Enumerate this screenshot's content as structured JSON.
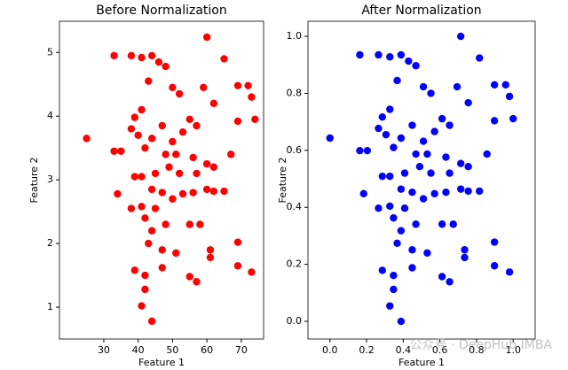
{
  "chart_data": [
    {
      "type": "scatter",
      "title": "Before Normalization",
      "x_label": "Feature 1",
      "y_label": "Feature 2",
      "color": "#ff0000",
      "tick_color": "#000000",
      "xlim": [
        17.1,
        76.5
      ],
      "ylim": [
        0.5,
        5.49
      ],
      "xticks": [
        30,
        40,
        50,
        60,
        70
      ],
      "yticks": [
        1,
        2,
        3,
        4,
        5
      ],
      "x": [
        25,
        33,
        38,
        41,
        44,
        46,
        48,
        60,
        65,
        69,
        72,
        73,
        74,
        43,
        50,
        52,
        59,
        62,
        69,
        39,
        41,
        38,
        40,
        44,
        47,
        50,
        53,
        55,
        57,
        33,
        35,
        42,
        48,
        51,
        56,
        60,
        62,
        67,
        39,
        41,
        45,
        49,
        52,
        57,
        34,
        44,
        47,
        53,
        56,
        60,
        62,
        65,
        38,
        41,
        45,
        50,
        42,
        44,
        48,
        55,
        58,
        43,
        47,
        51,
        61,
        69,
        39,
        42,
        47,
        55,
        57,
        69,
        73,
        42,
        41,
        44,
        61
      ],
      "values": [
        3.65,
        4.95,
        4.95,
        4.92,
        4.95,
        4.85,
        4.78,
        5.24,
        4.9,
        4.48,
        4.48,
        4.3,
        3.95,
        4.55,
        4.45,
        4.35,
        4.45,
        4.2,
        3.92,
        3.98,
        4.1,
        3.8,
        3.7,
        3.65,
        3.85,
        3.6,
        3.75,
        3.95,
        3.85,
        3.45,
        3.45,
        3.5,
        3.4,
        3.4,
        3.35,
        3.25,
        3.2,
        3.4,
        3.05,
        3.05,
        3.1,
        3.2,
        3.1,
        3.1,
        2.78,
        2.85,
        2.8,
        2.78,
        2.8,
        2.85,
        2.82,
        2.82,
        2.55,
        2.58,
        2.55,
        2.7,
        2.4,
        2.2,
        2.3,
        2.3,
        2.3,
        2.0,
        1.9,
        1.85,
        1.9,
        2.02,
        1.58,
        1.5,
        1.62,
        1.48,
        1.4,
        1.65,
        1.55,
        1.28,
        1.02,
        0.78,
        1.78
      ]
    },
    {
      "type": "scatter",
      "title": "After Normalization",
      "x_label": "Feature 1",
      "y_label": "Feature 2",
      "color": "#0000ff",
      "tick_color": "#d62728",
      "xlim": [
        -0.12,
        1.12
      ],
      "ylim": [
        -0.062,
        1.053
      ],
      "xticks": [
        {
          "value": 0,
          "label": "0.0"
        },
        0.2,
        0.4,
        0.6,
        0.8,
        {
          "value": 1,
          "label": "1.0"
        }
      ],
      "yticks": [
        {
          "value": 0,
          "label": "0.0"
        },
        0.2,
        0.4,
        0.6,
        0.8,
        {
          "value": 1,
          "label": "1.0"
        }
      ],
      "x": [
        0,
        0.163,
        0.265,
        0.327,
        0.388,
        0.429,
        0.469,
        0.714,
        0.816,
        0.898,
        0.959,
        0.98,
        1,
        0.367,
        0.51,
        0.551,
        0.694,
        0.755,
        0.898,
        0.286,
        0.327,
        0.265,
        0.306,
        0.388,
        0.449,
        0.51,
        0.571,
        0.612,
        0.653,
        0.163,
        0.204,
        0.347,
        0.469,
        0.531,
        0.633,
        0.714,
        0.755,
        0.857,
        0.286,
        0.327,
        0.408,
        0.49,
        0.551,
        0.653,
        0.184,
        0.388,
        0.449,
        0.571,
        0.633,
        0.714,
        0.755,
        0.816,
        0.265,
        0.327,
        0.408,
        0.51,
        0.347,
        0.388,
        0.469,
        0.612,
        0.673,
        0.367,
        0.449,
        0.531,
        0.735,
        0.898,
        0.286,
        0.347,
        0.449,
        0.612,
        0.653,
        0.898,
        0.98,
        0.347,
        0.327,
        0.388,
        0.735
      ],
      "values": [
        0.643,
        0.935,
        0.935,
        0.928,
        0.935,
        0.913,
        0.897,
        1,
        0.924,
        0.83,
        0.83,
        0.789,
        0.711,
        0.845,
        0.823,
        0.8,
        0.823,
        0.767,
        0.704,
        0.717,
        0.744,
        0.677,
        0.655,
        0.643,
        0.688,
        0.632,
        0.666,
        0.711,
        0.688,
        0.599,
        0.599,
        0.61,
        0.587,
        0.587,
        0.576,
        0.554,
        0.543,
        0.587,
        0.509,
        0.509,
        0.52,
        0.543,
        0.52,
        0.52,
        0.448,
        0.464,
        0.453,
        0.448,
        0.453,
        0.464,
        0.457,
        0.457,
        0.397,
        0.404,
        0.397,
        0.43,
        0.363,
        0.318,
        0.341,
        0.341,
        0.341,
        0.274,
        0.251,
        0.24,
        0.251,
        0.278,
        0.179,
        0.161,
        0.188,
        0.157,
        0.139,
        0.195,
        0.173,
        0.112,
        0.054,
        0,
        0.224
      ]
    }
  ],
  "watermark": "公众号 · DeepHub IMBA"
}
